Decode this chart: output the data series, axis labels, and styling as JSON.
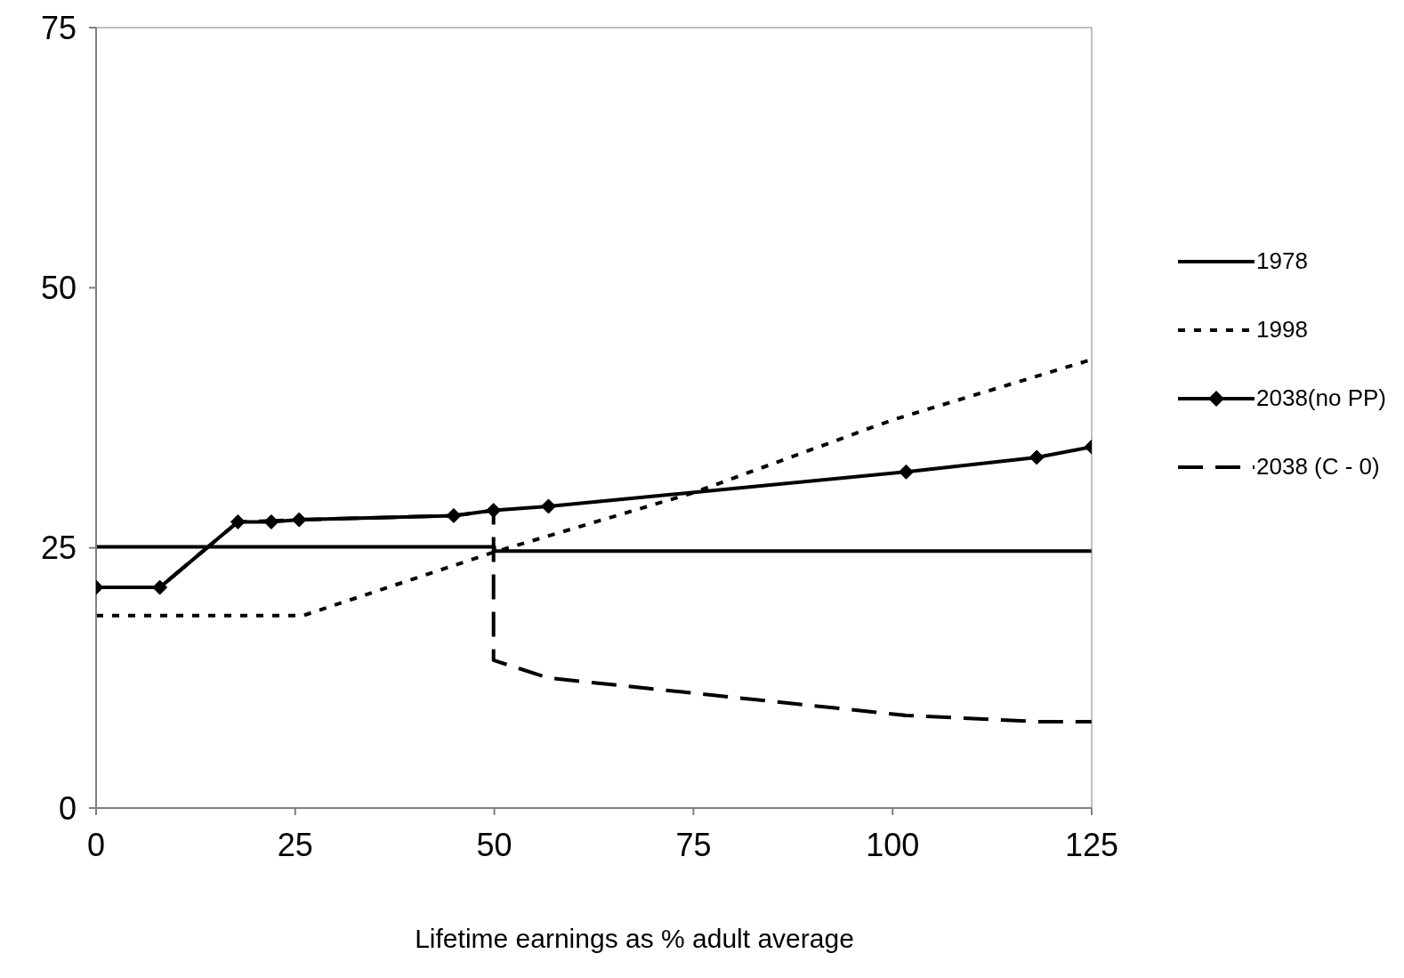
{
  "chart_data": {
    "type": "line",
    "xlabel": "Lifetime earnings as % adult average",
    "xlim": [
      0,
      125
    ],
    "xticks": [
      0,
      25,
      50,
      75,
      100,
      125
    ],
    "ylim": [
      0,
      75
    ],
    "yticks": [
      0,
      25,
      50,
      75
    ],
    "grid": false,
    "legend": "right",
    "series": [
      {
        "name": "1978",
        "color": "#000000",
        "line_style": "solid",
        "marker": "none",
        "x": [
          0,
          50,
          50,
          125
        ],
        "values": [
          25.1,
          25.1,
          24.7,
          24.7
        ]
      },
      {
        "name": "1998",
        "color": "#000000",
        "line_style": "dotted",
        "marker": "none",
        "x": [
          0,
          26,
          50,
          75,
          100,
          125
        ],
        "values": [
          18.5,
          18.5,
          24.6,
          30.3,
          37.3,
          43.1
        ]
      },
      {
        "name": "2038(no PP)",
        "color": "#000000",
        "line_style": "solid",
        "marker": "diamond",
        "x": [
          0,
          8,
          17.8,
          22,
          25.5,
          44.9,
          49.9,
          56.8,
          101.7,
          118.1,
          125
        ],
        "values": [
          21.2,
          21.2,
          27.5,
          27.5,
          27.7,
          28.1,
          28.6,
          29,
          32.3,
          33.7,
          34.7
        ]
      },
      {
        "name": "2038 (C - 0)",
        "color": "#000000",
        "line_style": "dashed",
        "marker": "none",
        "x": [
          0,
          8,
          17.8,
          25.5,
          44.9,
          49.9,
          49.9,
          56.8,
          101.7,
          118.1,
          125
        ],
        "values": [
          21.2,
          21.2,
          27.5,
          27.7,
          28.1,
          28.6,
          14.2,
          12.5,
          8.9,
          8.3,
          8.3
        ]
      }
    ]
  }
}
